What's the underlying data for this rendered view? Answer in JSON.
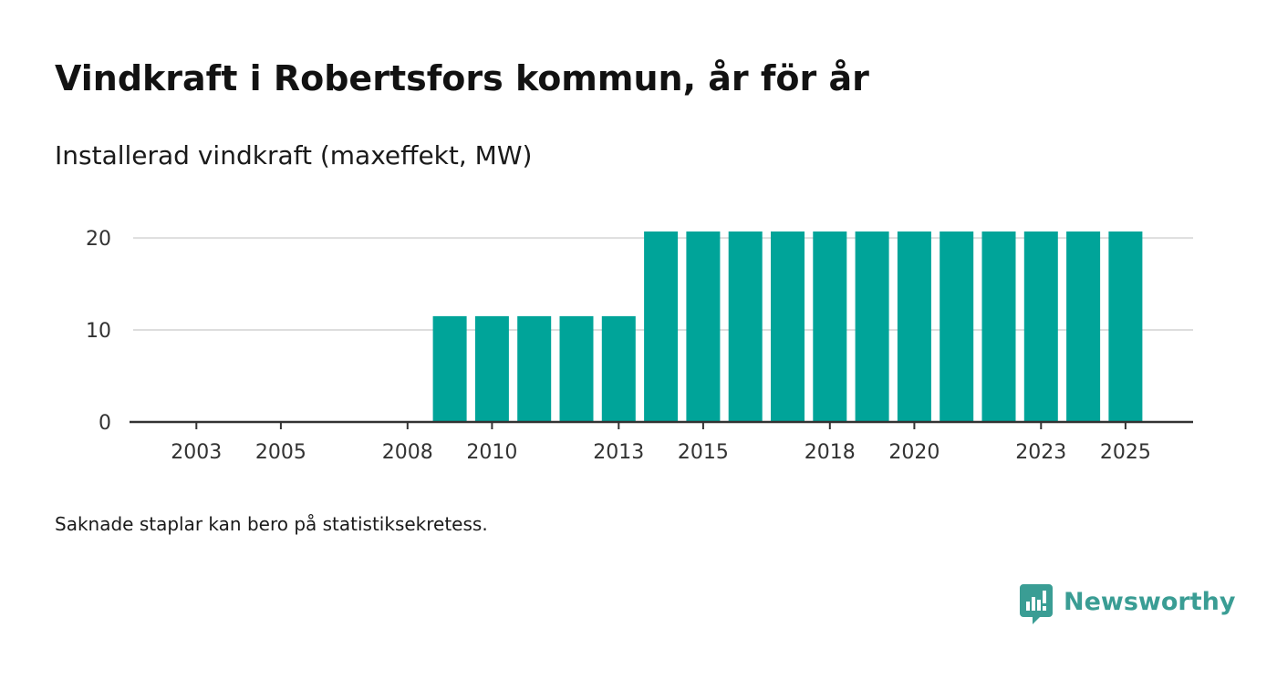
{
  "title": "Vindkraft i Robertsfors kommun, år för år",
  "subtitle": "Installerad vindkraft (maxeffekt, MW)",
  "footnote": "Saknade staplar kan bero på statistiksekretess.",
  "brand": {
    "name": "Newsworthy",
    "color": "#3a9d94"
  },
  "colors": {
    "bar": "#00a499",
    "grid": "#dddddd",
    "axis": "#333333"
  },
  "chart_data": {
    "type": "bar",
    "title": "Vindkraft i Robertsfors kommun, år för år",
    "ylabel": "Installerad vindkraft (maxeffekt, MW)",
    "xlabel": "",
    "categories": [
      2002,
      2003,
      2004,
      2005,
      2006,
      2007,
      2008,
      2009,
      2010,
      2011,
      2012,
      2013,
      2014,
      2015,
      2016,
      2017,
      2018,
      2019,
      2020,
      2021,
      2022,
      2023,
      2024,
      2025
    ],
    "values": [
      0,
      0,
      0,
      0,
      0,
      0,
      0,
      11.5,
      11.5,
      11.5,
      11.5,
      11.5,
      20.7,
      20.7,
      20.7,
      20.7,
      20.7,
      20.7,
      20.7,
      20.7,
      20.7,
      20.7,
      20.7,
      20.7
    ],
    "ylim": [
      0,
      20.7
    ],
    "yticks": [
      0,
      10,
      20
    ],
    "xticks": [
      2003,
      2005,
      2008,
      2010,
      2013,
      2015,
      2018,
      2020,
      2023,
      2025
    ],
    "grid": true
  }
}
